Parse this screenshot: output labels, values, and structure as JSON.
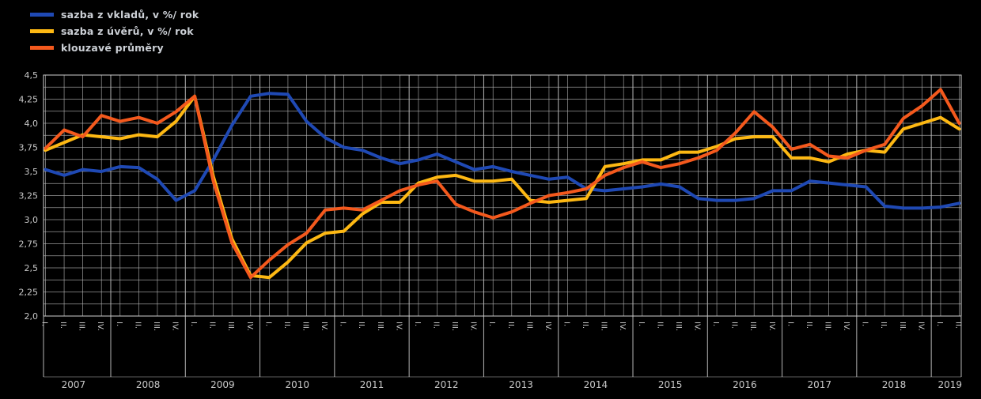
{
  "legend": {
    "items": [
      {
        "label": "sazba z vkladů, v %/ rok",
        "color": "#1F49B4"
      },
      {
        "label": "sazba z úvěrů, v %/ rok",
        "color": "#FDB813"
      },
      {
        "label": "klouzavé průměry",
        "color": "#F4591D"
      }
    ]
  },
  "chart_data": {
    "type": "line",
    "title": "",
    "xlabel": "",
    "ylabel": "",
    "ylim": [
      2.0,
      4.5
    ],
    "y_minor_step": 0.125,
    "grid": true,
    "legend_position": "top-left",
    "colors": {
      "background": "#000000",
      "grid": "#b5b5b5",
      "text": "#c9c9c9"
    },
    "y_ticks": [
      {
        "value": 4.5,
        "label": "4,5"
      },
      {
        "value": 4.25,
        "label": "4,25"
      },
      {
        "value": 4.0,
        "label": "4,0"
      },
      {
        "value": 3.75,
        "label": "3,75"
      },
      {
        "value": 3.5,
        "label": "3,5"
      },
      {
        "value": 3.25,
        "label": "3,25"
      },
      {
        "value": 3.0,
        "label": "3,0"
      },
      {
        "value": 2.75,
        "label": "2,75"
      },
      {
        "value": 2.5,
        "label": "2,5"
      },
      {
        "value": 2.25,
        "label": "2,25"
      },
      {
        "value": 2.0,
        "label": "2,0"
      }
    ],
    "years": [
      {
        "label": "2007",
        "quarters": [
          "I.",
          "II.",
          "III.",
          "IV."
        ]
      },
      {
        "label": "2008",
        "quarters": [
          "I.",
          "II.",
          "III.",
          "IV."
        ]
      },
      {
        "label": "2009",
        "quarters": [
          "I.",
          "II.",
          "III.",
          "IV."
        ]
      },
      {
        "label": "2010",
        "quarters": [
          "I.",
          "II.",
          "III.",
          "IV."
        ]
      },
      {
        "label": "2011",
        "quarters": [
          "I.",
          "II.",
          "III.",
          "IV."
        ]
      },
      {
        "label": "2012",
        "quarters": [
          "I.",
          "II.",
          "III.",
          "IV."
        ]
      },
      {
        "label": "2013",
        "quarters": [
          "I.",
          "II.",
          "III.",
          "IV."
        ]
      },
      {
        "label": "2014",
        "quarters": [
          "I.",
          "II.",
          "III.",
          "IV."
        ]
      },
      {
        "label": "2015",
        "quarters": [
          "I.",
          "II.",
          "III.",
          "IV."
        ]
      },
      {
        "label": "2016",
        "quarters": [
          "I.",
          "II.",
          "III.",
          "IV."
        ]
      },
      {
        "label": "2017",
        "quarters": [
          "I.",
          "II.",
          "III.",
          "IV."
        ]
      },
      {
        "label": "2018",
        "quarters": [
          "I.",
          "II.",
          "III.",
          "IV."
        ]
      },
      {
        "label": "2019",
        "quarters": [
          "I.",
          "II."
        ]
      }
    ],
    "series": [
      {
        "name": "sazba z vkladů, v %/ rok",
        "color": "#1F49B4",
        "values": [
          3.52,
          3.46,
          3.52,
          3.5,
          3.55,
          3.54,
          3.42,
          3.2,
          3.3,
          3.62,
          3.98,
          4.28,
          4.31,
          4.3,
          4.02,
          3.85,
          3.75,
          3.72,
          3.64,
          3.58,
          3.62,
          3.68,
          3.6,
          3.52,
          3.55,
          3.5,
          3.46,
          3.42,
          3.44,
          3.32,
          3.3,
          3.32,
          3.34,
          3.37,
          3.34,
          3.22,
          3.2,
          3.2,
          3.22,
          3.3,
          3.3,
          3.4,
          3.38,
          3.36,
          3.34,
          3.14,
          3.12,
          3.12,
          3.13,
          3.17
        ]
      },
      {
        "name": "sazba z úvěrů, v %/ rok",
        "color": "#FDB813",
        "values": [
          3.72,
          3.8,
          3.88,
          3.86,
          3.84,
          3.88,
          3.86,
          4.02,
          4.28,
          3.45,
          2.8,
          2.42,
          2.4,
          2.56,
          2.76,
          2.86,
          2.88,
          3.06,
          3.18,
          3.18,
          3.38,
          3.44,
          3.46,
          3.4,
          3.4,
          3.42,
          3.2,
          3.18,
          3.2,
          3.22,
          3.55,
          3.58,
          3.62,
          3.62,
          3.7,
          3.7,
          3.76,
          3.84,
          3.86,
          3.86,
          3.64,
          3.64,
          3.6,
          3.68,
          3.72,
          3.7,
          3.94,
          4.0,
          4.06,
          3.94
        ]
      },
      {
        "name": "klouzavé průměry",
        "color": "#F4591D",
        "values": [
          3.74,
          3.93,
          3.86,
          4.08,
          4.02,
          4.06,
          4.0,
          4.12,
          4.28,
          3.4,
          2.76,
          2.4,
          2.58,
          2.74,
          2.86,
          3.1,
          3.12,
          3.1,
          3.2,
          3.3,
          3.36,
          3.4,
          3.16,
          3.08,
          3.02,
          3.08,
          3.17,
          3.25,
          3.28,
          3.32,
          3.46,
          3.54,
          3.6,
          3.54,
          3.58,
          3.64,
          3.72,
          3.9,
          4.12,
          3.96,
          3.73,
          3.78,
          3.66,
          3.64,
          3.72,
          3.78,
          4.05,
          4.18,
          4.35,
          4.0
        ]
      }
    ]
  }
}
